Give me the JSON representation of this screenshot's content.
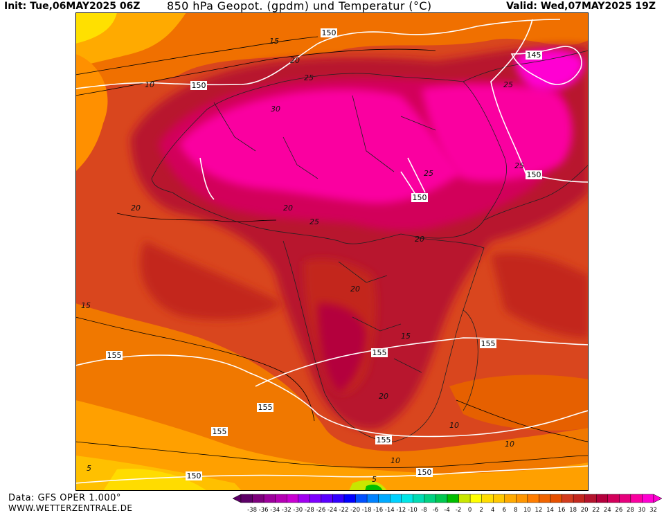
{
  "header": {
    "init": "Init: Tue,06MAY2025 06Z",
    "title": "850 hPa Geopot. (gpdm) und Temperatur (°C)",
    "valid": "Valid: Wed,07MAY2025 19Z"
  },
  "footer": {
    "data_source": "Data: GFS OPER 1.000°",
    "website": "WWW.WETTERZENTRALE.DE"
  },
  "map": {
    "geopotential_labels": [
      "150",
      "150",
      "145",
      "150",
      "150",
      "155",
      "155",
      "155",
      "155",
      "155",
      "150",
      "150",
      "155"
    ],
    "temperature_labels": [
      "15",
      "10",
      "20",
      "25",
      "30",
      "25",
      "20",
      "20",
      "25",
      "20",
      "15",
      "20",
      "20",
      "15",
      "10",
      "10",
      "10",
      "5",
      "5",
      "25",
      "25"
    ]
  },
  "color_scale": {
    "ticks": [
      "-38",
      "-36",
      "-34",
      "-32",
      "-30",
      "-28",
      "-26",
      "-24",
      "-22",
      "-20",
      "-18",
      "-16",
      "-14",
      "-12",
      "-10",
      "-8",
      "-6",
      "-4",
      "-2",
      "0",
      "2",
      "4",
      "6",
      "8",
      "10",
      "12",
      "14",
      "16",
      "18",
      "20",
      "22",
      "24",
      "26",
      "28",
      "30",
      "32"
    ],
    "colors": [
      "#5c0067",
      "#7d007d",
      "#9c009c",
      "#b400b4",
      "#c800d2",
      "#a000f0",
      "#7d00ff",
      "#5a00ff",
      "#3200ff",
      "#0000ff",
      "#0050ff",
      "#0082ff",
      "#00aaff",
      "#00d2ff",
      "#00e6e6",
      "#00dcb4",
      "#00d282",
      "#00c850",
      "#00be00",
      "#c8e600",
      "#ffff00",
      "#ffdc00",
      "#ffc800",
      "#ffaa00",
      "#ff9600",
      "#ff7d00",
      "#f06400",
      "#e65000",
      "#d23c1e",
      "#c3281e",
      "#b4142d",
      "#b4003c",
      "#d2005a",
      "#e6007d",
      "#fa00a0",
      "#ff00d2"
    ]
  }
}
